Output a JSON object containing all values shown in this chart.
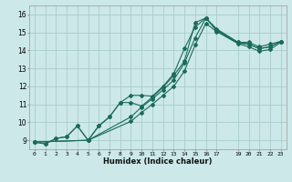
{
  "xlabel": "Humidex (Indice chaleur)",
  "bg_color": "#cce8e8",
  "grid_color": "#aacccc",
  "line_color": "#1a6b5a",
  "xlim": [
    -0.5,
    23.5
  ],
  "ylim": [
    8.5,
    16.5
  ],
  "xtick_vals": [
    0,
    1,
    2,
    3,
    4,
    5,
    6,
    7,
    8,
    9,
    10,
    11,
    12,
    13,
    14,
    15,
    16,
    17,
    19,
    20,
    21,
    22,
    23
  ],
  "ytick_vals": [
    9,
    10,
    11,
    12,
    13,
    14,
    15,
    16
  ],
  "line1_x": [
    0,
    1,
    2,
    3,
    4,
    5,
    6,
    7,
    8,
    9,
    10,
    11,
    12,
    13,
    14,
    15,
    16,
    17,
    19,
    20,
    21,
    22,
    23
  ],
  "line1_y": [
    8.9,
    8.8,
    9.1,
    9.2,
    9.8,
    9.0,
    9.8,
    10.3,
    11.1,
    11.5,
    11.5,
    11.45,
    12.0,
    12.7,
    14.1,
    15.3,
    15.8,
    15.15,
    14.45,
    14.45,
    14.2,
    14.35,
    14.5
  ],
  "line2_x": [
    0,
    1,
    2,
    3,
    4,
    5,
    6,
    7,
    8,
    9,
    10,
    11,
    12,
    13,
    14,
    15,
    16,
    17,
    19,
    20,
    21,
    22,
    23
  ],
  "line2_y": [
    8.9,
    8.8,
    9.1,
    9.2,
    9.8,
    9.0,
    9.8,
    10.3,
    11.1,
    11.1,
    10.9,
    11.4,
    11.95,
    12.6,
    13.4,
    15.55,
    15.8,
    15.2,
    14.45,
    14.35,
    14.1,
    14.2,
    14.5
  ],
  "line3_x": [
    0,
    5,
    9,
    10,
    11,
    12,
    13,
    14,
    15,
    16,
    17,
    19,
    20,
    21,
    22,
    23
  ],
  "line3_y": [
    8.9,
    9.0,
    10.3,
    10.85,
    11.3,
    11.8,
    12.35,
    13.3,
    14.7,
    15.8,
    15.1,
    14.4,
    14.35,
    14.1,
    14.2,
    14.5
  ],
  "line4_x": [
    0,
    5,
    9,
    10,
    11,
    12,
    13,
    14,
    15,
    16,
    17,
    19,
    20,
    21,
    22,
    23
  ],
  "line4_y": [
    8.9,
    9.0,
    10.05,
    10.55,
    11.0,
    11.5,
    12.0,
    12.85,
    14.3,
    15.5,
    15.05,
    14.38,
    14.2,
    13.95,
    14.05,
    14.45
  ]
}
